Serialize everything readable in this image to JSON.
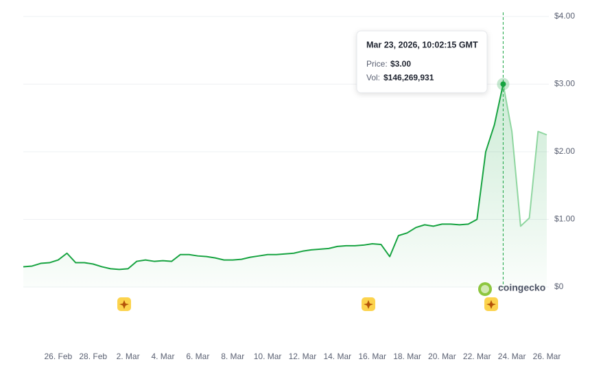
{
  "chart_data": {
    "type": "line",
    "categories": [
      null,
      null,
      null,
      null,
      "26. Feb",
      null,
      null,
      null,
      "28. Feb",
      null,
      null,
      null,
      "2. Mar",
      null,
      null,
      null,
      "4. Mar",
      null,
      null,
      null,
      "6. Mar",
      null,
      null,
      null,
      "8. Mar",
      null,
      null,
      null,
      "10. Mar",
      null,
      null,
      null,
      "12. Mar",
      null,
      null,
      null,
      "14. Mar",
      null,
      null,
      null,
      "16. Mar",
      null,
      null,
      null,
      "18. Mar",
      null,
      null,
      null,
      "20. Mar",
      null,
      null,
      null,
      "22. Mar",
      null,
      null,
      null,
      "24. Mar",
      null,
      null,
      null,
      "26. Mar"
    ],
    "series": [
      {
        "name": "Price",
        "color": "#16a340",
        "values": [
          0.3,
          0.31,
          0.35,
          0.36,
          0.4,
          0.5,
          0.36,
          0.36,
          0.34,
          0.3,
          0.27,
          0.26,
          0.27,
          0.38,
          0.4,
          0.38,
          0.39,
          0.38,
          0.48,
          0.48,
          0.46,
          0.45,
          0.43,
          0.4,
          0.4,
          0.41,
          0.44,
          0.46,
          0.48,
          0.48,
          0.49,
          0.5,
          0.53,
          0.55,
          0.56,
          0.57,
          0.6,
          0.61,
          0.61,
          0.62,
          0.64,
          0.63,
          0.45,
          0.76,
          0.8,
          0.88,
          0.92,
          0.9,
          0.93,
          0.93,
          0.92,
          0.93,
          1.0,
          2.0,
          2.4,
          3.0,
          2.3,
          0.9,
          1.02,
          2.3,
          2.25
        ]
      }
    ],
    "ylim": [
      0,
      4
    ],
    "yticks": [
      {
        "value": 0,
        "label": "$0"
      },
      {
        "value": 1,
        "label": "$1.00"
      },
      {
        "value": 2,
        "label": "$2.00"
      },
      {
        "value": 3,
        "label": "$3.00"
      },
      {
        "value": 4,
        "label": "$4.00"
      }
    ],
    "grid": true,
    "hover_index": 55,
    "tooltip": {
      "date": "Mar 23, 2026, 10:02:15 GMT",
      "price_label": "Price:",
      "price": "$3.00",
      "vol_label": "Vol:",
      "vol": "$146,269,931"
    },
    "brand": "coingecko"
  }
}
